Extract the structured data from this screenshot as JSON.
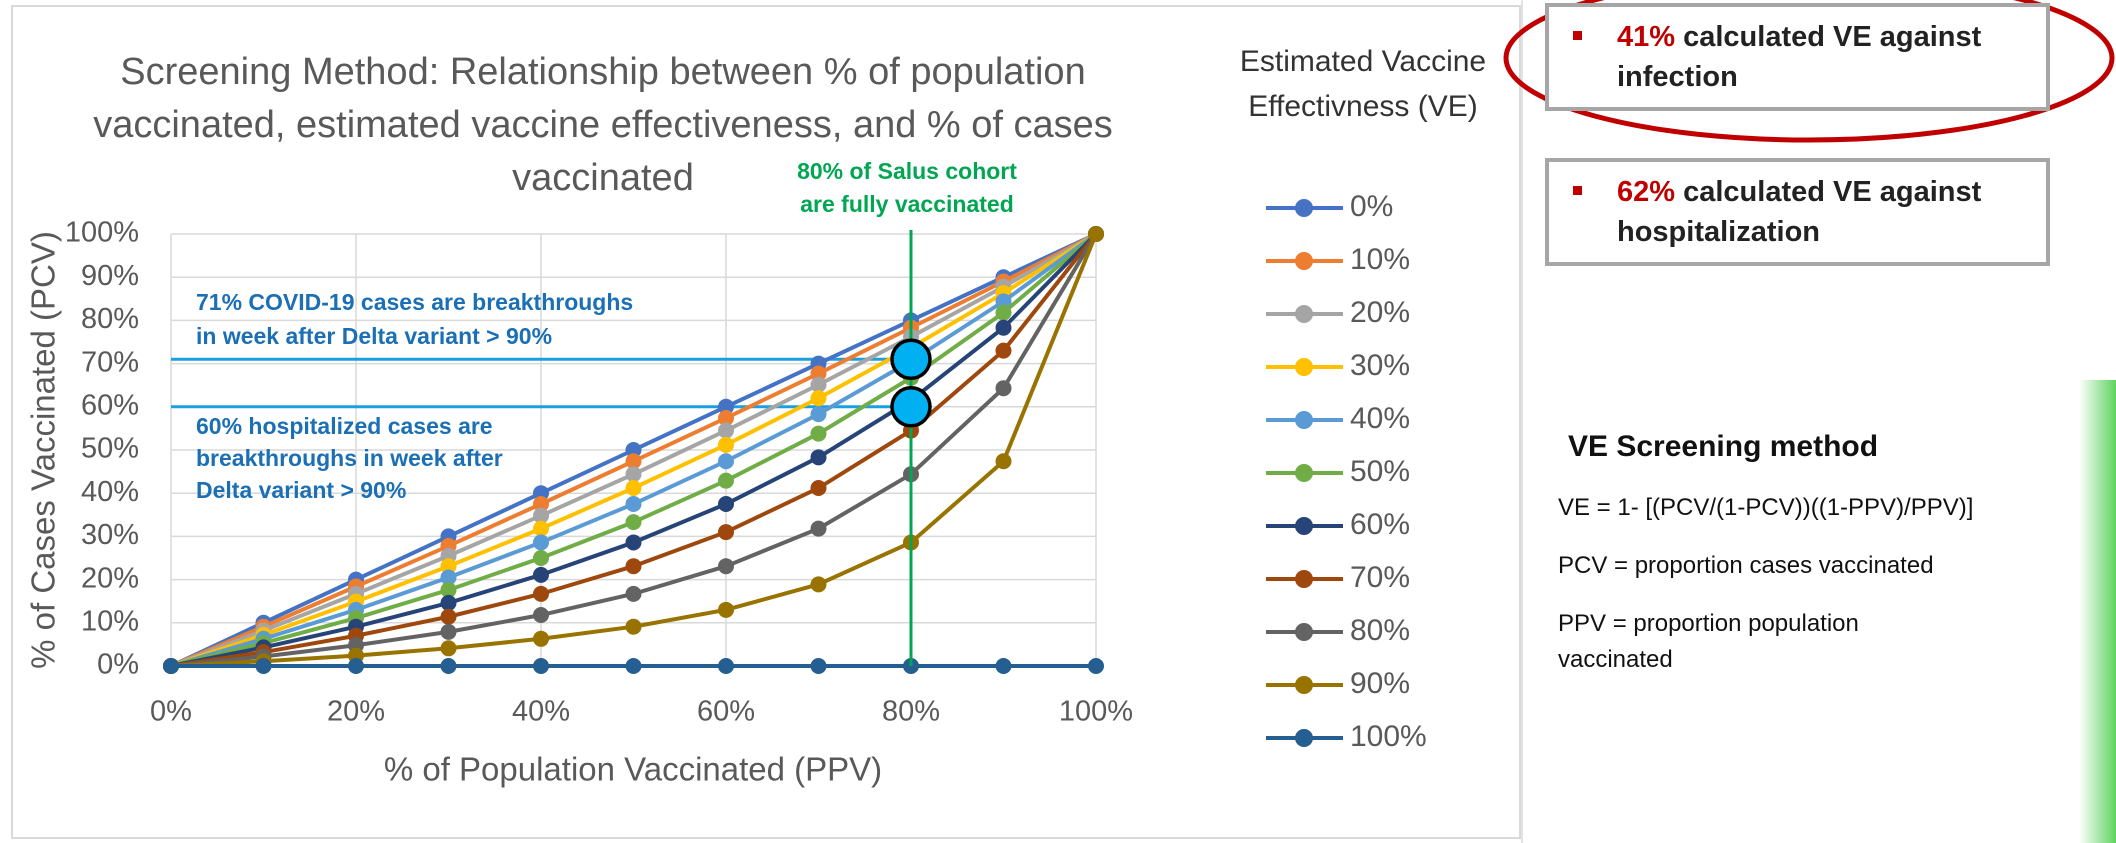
{
  "chart_data": {
    "type": "line",
    "title": [
      "Screening Method: Relationship between % of population",
      "vaccinated, estimated vaccine effectiveness, and % of cases",
      "vaccinated"
    ],
    "x_label": "% of Population Vaccinated (PPV)",
    "y_label": "% of Cases Vaccinated (PCV)",
    "legend_title": [
      "Estimated Vaccine",
      "Effectivness (VE)"
    ],
    "legend": "right",
    "x": [
      0,
      10,
      20,
      30,
      40,
      50,
      60,
      70,
      80,
      90,
      100
    ],
    "xlim": [
      0,
      100
    ],
    "xticks": [
      {
        "value": 0,
        "label": "0%"
      },
      {
        "value": 20,
        "label": "20%"
      },
      {
        "value": 40,
        "label": "40%"
      },
      {
        "value": 60,
        "label": "60%"
      },
      {
        "value": 80,
        "label": "80%"
      },
      {
        "value": 100,
        "label": "100%"
      }
    ],
    "ylim": [
      0,
      100
    ],
    "yticks": [
      {
        "value": 0,
        "label": "0%"
      },
      {
        "value": 10,
        "label": "10%"
      },
      {
        "value": 20,
        "label": "20%"
      },
      {
        "value": 30,
        "label": "30%"
      },
      {
        "value": 40,
        "label": "40%"
      },
      {
        "value": 50,
        "label": "50%"
      },
      {
        "value": 60,
        "label": "60%"
      },
      {
        "value": 70,
        "label": "70%"
      },
      {
        "value": 80,
        "label": "80%"
      },
      {
        "value": 90,
        "label": "90%"
      },
      {
        "value": 100,
        "label": "100%"
      }
    ],
    "grid": true,
    "series": [
      {
        "name": "0%",
        "color": "#4472c4",
        "values": [
          0,
          10,
          20,
          30,
          40,
          50,
          60,
          70,
          80,
          90,
          100
        ]
      },
      {
        "name": "10%",
        "color": "#ed7d31",
        "values": [
          0,
          9.1,
          18.4,
          27.8,
          37.5,
          47.4,
          57.4,
          67.7,
          78.3,
          89.0,
          100
        ]
      },
      {
        "name": "20%",
        "color": "#a5a5a5",
        "values": [
          0,
          8.2,
          16.7,
          25.5,
          34.8,
          44.4,
          54.5,
          65.1,
          76.2,
          87.8,
          100
        ]
      },
      {
        "name": "30%",
        "color": "#ffc000",
        "values": [
          0,
          7.2,
          14.9,
          23.1,
          31.8,
          41.2,
          51.2,
          62.0,
          73.7,
          86.3,
          100
        ]
      },
      {
        "name": "40%",
        "color": "#5b9bd5",
        "values": [
          0,
          6.3,
          13.0,
          20.5,
          28.6,
          37.5,
          47.4,
          58.3,
          70.6,
          84.4,
          100
        ]
      },
      {
        "name": "50%",
        "color": "#70ad47",
        "values": [
          0,
          5.3,
          11.1,
          17.6,
          25,
          33.3,
          42.9,
          53.8,
          66.7,
          81.8,
          100
        ]
      },
      {
        "name": "60%",
        "color": "#264478",
        "values": [
          0,
          4.3,
          9.1,
          14.6,
          21.1,
          28.6,
          37.5,
          48.3,
          61.5,
          78.3,
          100
        ]
      },
      {
        "name": "70%",
        "color": "#9e480e",
        "values": [
          0,
          3.2,
          7.0,
          11.4,
          16.7,
          23.1,
          31.0,
          41.2,
          54.5,
          73.0,
          100
        ]
      },
      {
        "name": "80%",
        "color": "#636363",
        "values": [
          0,
          2.2,
          4.8,
          7.9,
          11.8,
          16.7,
          23.1,
          31.8,
          44.4,
          64.3,
          100
        ]
      },
      {
        "name": "90%",
        "color": "#997300",
        "values": [
          0,
          1.1,
          2.4,
          4.1,
          6.3,
          9.1,
          13.0,
          18.9,
          28.6,
          47.4,
          100
        ]
      },
      {
        "name": "100%",
        "color": "#255e91",
        "values": [
          0,
          0,
          0,
          0,
          0,
          0,
          0,
          0,
          0,
          0,
          0
        ]
      }
    ],
    "vertical_line": {
      "x": 80,
      "color": "#00a651",
      "lines": [
        "80% of Salus cohort",
        "are fully vaccinated"
      ]
    },
    "horizontal_lines": [
      {
        "y": 71,
        "color": "#1aa0e0",
        "lines": [
          "71% COVID-19 cases are breakthroughs",
          "in week after Delta variant > 90%"
        ]
      },
      {
        "y": 60,
        "color": "#1aa0e0",
        "lines": [
          "60% hospitalized cases are",
          "breakthroughs in week after",
          "Delta variant > 90%"
        ]
      }
    ]
  },
  "callouts": [
    {
      "highlight": "41%",
      "text": "calculated VE against infection"
    },
    {
      "highlight": "62%",
      "text": "calculated VE against hospitalization"
    }
  ],
  "method": {
    "heading": "VE Screening method",
    "lines": [
      "VE = 1- [(PCV/(1-PCV))((1-PPV)/PPV)]",
      "PCV = proportion cases vaccinated",
      "PPV = proportion population vaccinated"
    ]
  }
}
